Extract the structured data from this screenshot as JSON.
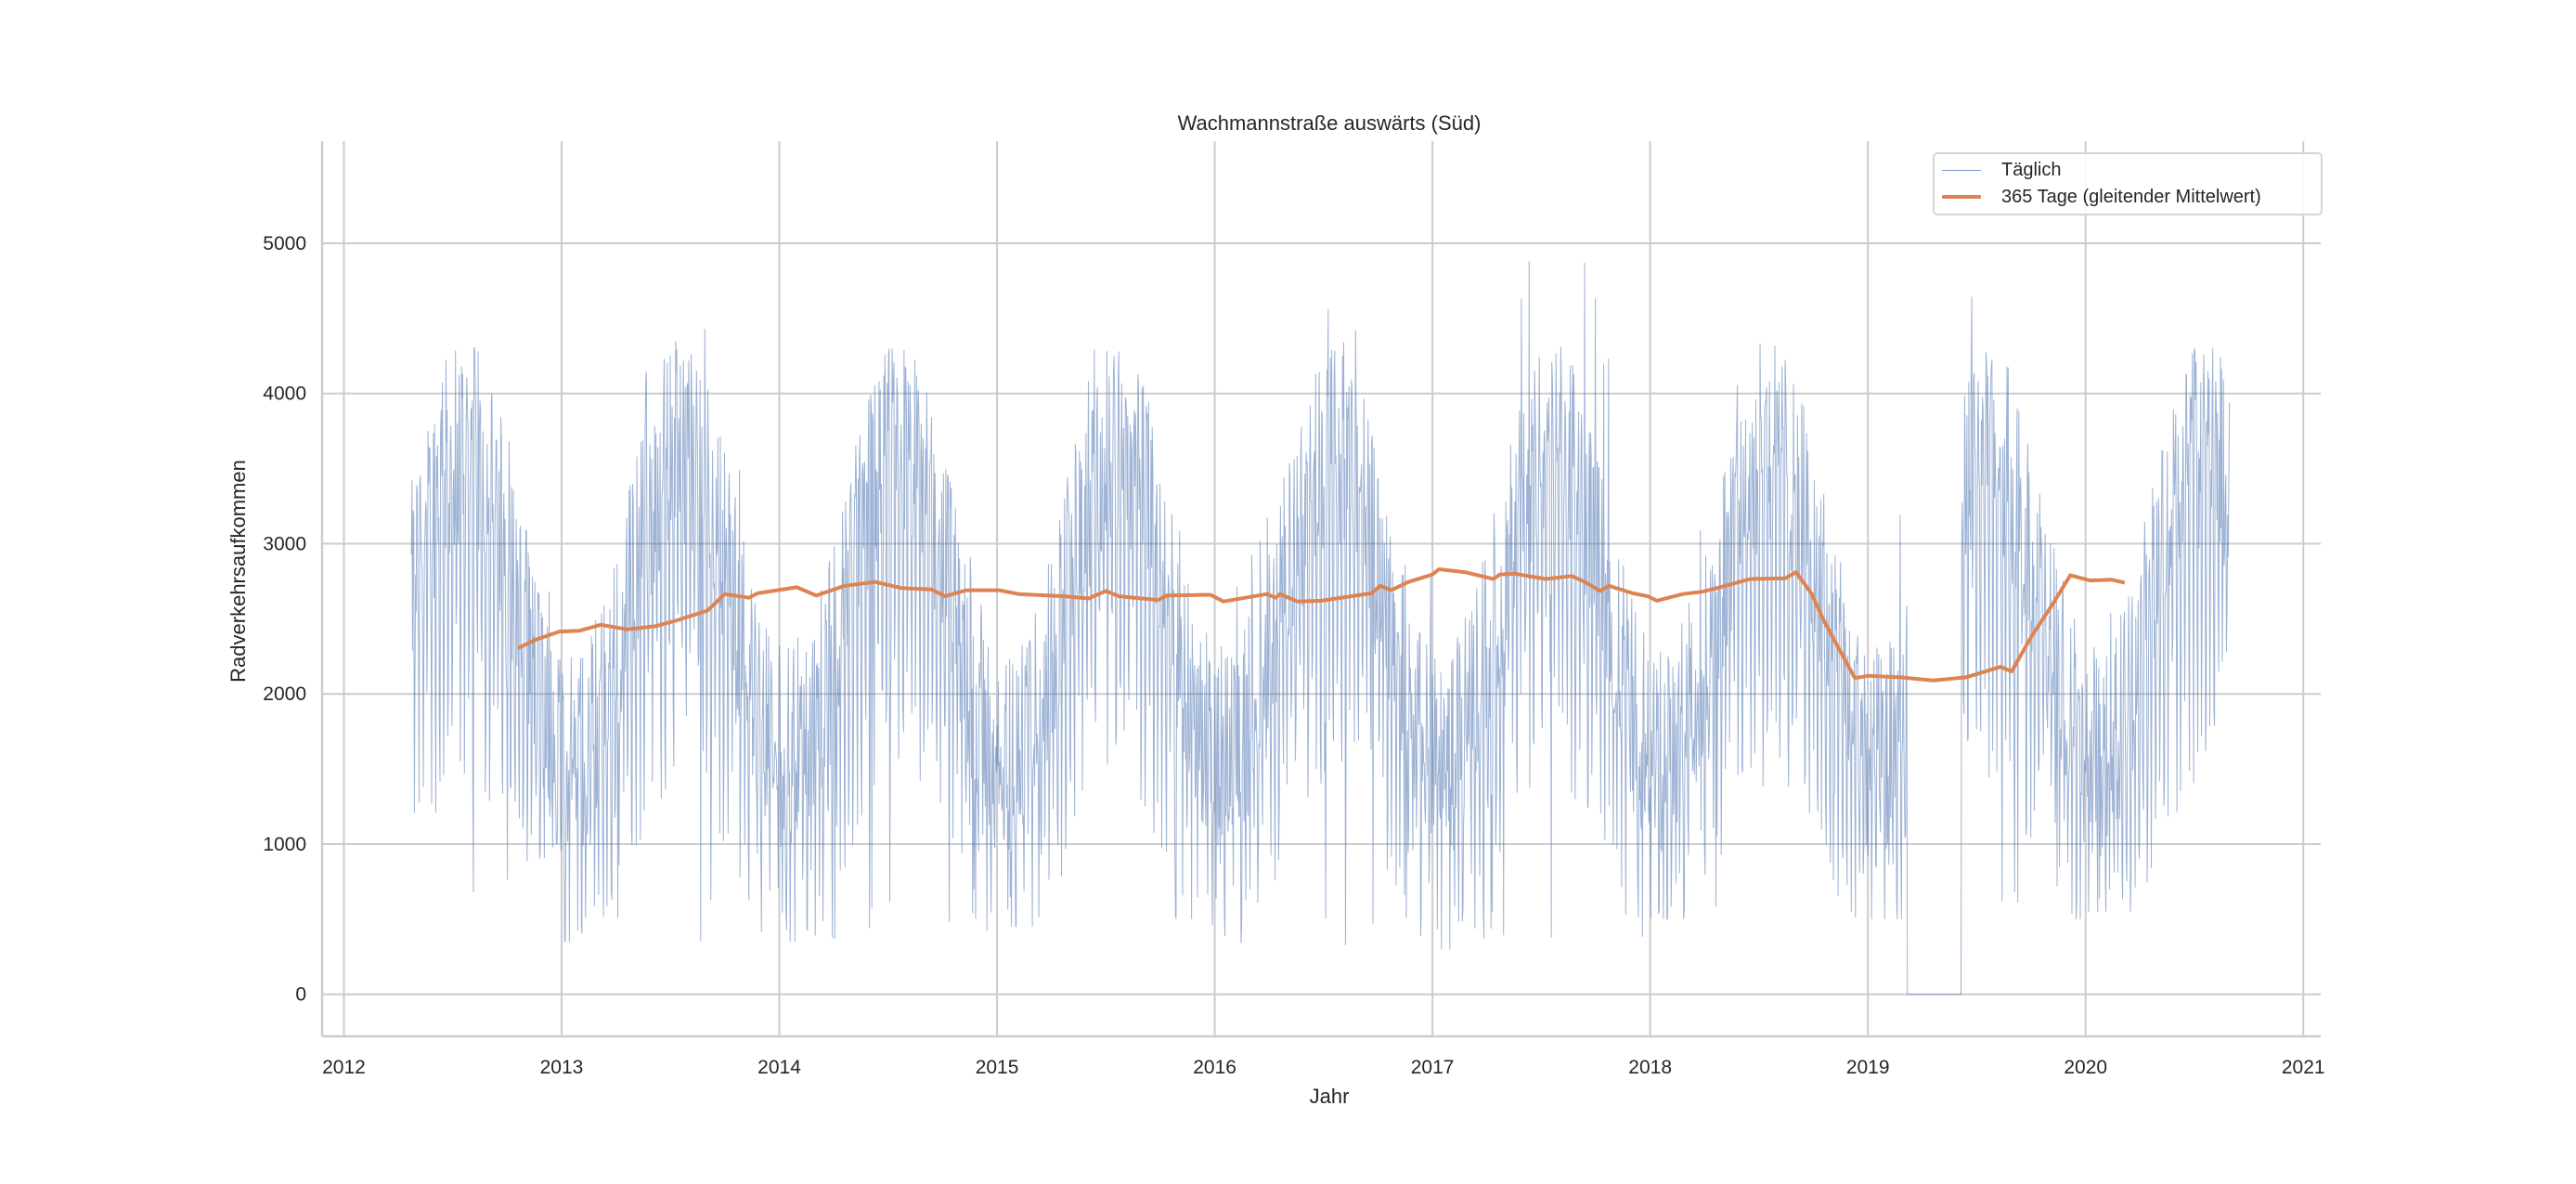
{
  "chart_data": {
    "type": "line",
    "title": "Wachmannstraße auswärts (Süd)",
    "xlabel": "Jahr",
    "ylabel": "Radverkehrsaufkommen",
    "xlim": [
      2011.9,
      2021.08
    ],
    "ylim": [
      -280,
      5680
    ],
    "xticks": [
      2012,
      2013,
      2014,
      2015,
      2016,
      2017,
      2018,
      2019,
      2020,
      2021
    ],
    "yticks": [
      0,
      1000,
      2000,
      3000,
      4000,
      5000
    ],
    "grid": true,
    "legend": {
      "position": "top-right",
      "entries": [
        "Täglich",
        "365 Tage (gleitender Mittelwert)"
      ]
    },
    "colors": {
      "daily": "#4c72b0",
      "rolling": "#dd8452",
      "grid": "#cccccc",
      "text": "#262626"
    },
    "series": [
      {
        "name": "Täglich",
        "kind": "daily-seasonal-approximation",
        "x_start": 2012.31,
        "x_end": 2020.66,
        "zero_gap": [
          2019.18,
          2019.43
        ],
        "yearly_summer_peak": {
          "2012": 4400,
          "2013": 4750,
          "2014": 4300,
          "2015": 4700,
          "2016": 4600,
          "2017": 5400,
          "2018": 4500,
          "2019": 5100,
          "2020": 4300
        },
        "yearly_winter_min": {
          "2012": 650,
          "2013": 350,
          "2014": 350,
          "2015": 450,
          "2016": 250,
          "2017": 300,
          "2018": 500,
          "2019": 500,
          "2020": 550
        },
        "summer_typical_range": [
          2200,
          4000
        ],
        "winter_typical_range": [
          800,
          2600
        ]
      },
      {
        "name": "365 Tage (gleitender Mittelwert)",
        "x": [
          2012.8,
          2012.88,
          2012.99,
          2013.08,
          2013.18,
          2013.3,
          2013.43,
          2013.53,
          2013.67,
          2013.75,
          2013.86,
          2013.9,
          2014.08,
          2014.17,
          2014.3,
          2014.44,
          2014.56,
          2014.7,
          2014.76,
          2014.86,
          2015.01,
          2015.1,
          2015.31,
          2015.42,
          2015.5,
          2015.56,
          2015.74,
          2015.78,
          2015.98,
          2016.04,
          2016.24,
          2016.28,
          2016.3,
          2016.38,
          2016.49,
          2016.72,
          2016.76,
          2016.81,
          2016.89,
          2017.0,
          2017.03,
          2017.15,
          2017.28,
          2017.31,
          2017.38,
          2017.52,
          2017.64,
          2017.7,
          2017.77,
          2017.81,
          2017.92,
          2017.99,
          2018.03,
          2018.15,
          2018.24,
          2018.32,
          2018.46,
          2018.62,
          2018.67,
          2018.74,
          2018.8,
          2018.94,
          2019.0,
          2019.15,
          2019.3,
          2019.45,
          2019.61,
          2019.66,
          2019.75,
          2019.85,
          2019.93,
          2020.02,
          2020.12,
          2020.18
        ],
        "y": [
          2305,
          2360,
          2415,
          2420,
          2460,
          2430,
          2450,
          2490,
          2555,
          2665,
          2640,
          2670,
          2710,
          2655,
          2720,
          2745,
          2705,
          2695,
          2650,
          2690,
          2690,
          2665,
          2650,
          2635,
          2685,
          2650,
          2625,
          2655,
          2660,
          2615,
          2665,
          2640,
          2665,
          2615,
          2620,
          2670,
          2720,
          2690,
          2745,
          2795,
          2830,
          2810,
          2765,
          2795,
          2800,
          2765,
          2785,
          2745,
          2685,
          2720,
          2670,
          2650,
          2620,
          2665,
          2680,
          2710,
          2765,
          2770,
          2810,
          2670,
          2480,
          2105,
          2120,
          2110,
          2090,
          2110,
          2180,
          2150,
          2380,
          2600,
          2790,
          2755,
          2760,
          2740
        ]
      }
    ]
  }
}
